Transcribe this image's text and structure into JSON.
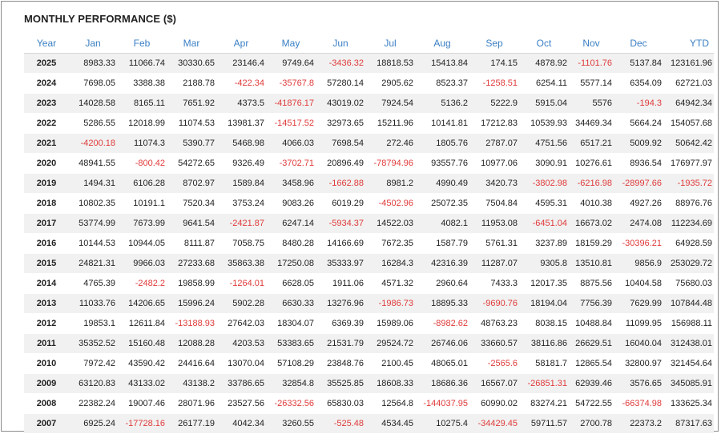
{
  "title": "MONTHLY PERFORMANCE ($)",
  "colors": {
    "header": "#3a7fc4",
    "negative": "#e03a3a",
    "stripe": "#f1f1f1"
  },
  "columns": [
    "Year",
    "Jan",
    "Feb",
    "Mar",
    "Apr",
    "May",
    "Jun",
    "Jul",
    "Aug",
    "Sep",
    "Oct",
    "Nov",
    "Dec",
    "YTD"
  ],
  "rows": [
    [
      "2025",
      "8983.33",
      "11066.74",
      "30330.65",
      "23146.4",
      "9749.64",
      "-3436.32",
      "18818.53",
      "15413.84",
      "174.15",
      "4878.92",
      "-1101.76",
      "5137.84",
      "123161.96"
    ],
    [
      "2024",
      "7698.05",
      "3388.38",
      "2188.78",
      "-422.34",
      "-35767.8",
      "57280.14",
      "2905.62",
      "8523.37",
      "-1258.51",
      "6254.11",
      "5577.14",
      "6354.09",
      "62721.03"
    ],
    [
      "2023",
      "14028.58",
      "8165.11",
      "7651.92",
      "4373.5",
      "-41876.17",
      "43019.02",
      "7924.54",
      "5136.2",
      "5222.9",
      "5915.04",
      "5576",
      "-194.3",
      "64942.34"
    ],
    [
      "2022",
      "5286.55",
      "12018.99",
      "11074.53",
      "13981.37",
      "-14517.52",
      "32973.65",
      "15211.96",
      "10141.81",
      "17212.83",
      "10539.93",
      "34469.34",
      "5664.24",
      "154057.68"
    ],
    [
      "2021",
      "-4200.18",
      "11074.3",
      "5390.77",
      "5468.98",
      "4066.03",
      "7698.54",
      "272.46",
      "1805.76",
      "2787.07",
      "4751.56",
      "6517.21",
      "5009.92",
      "50642.42"
    ],
    [
      "2020",
      "48941.55",
      "-800.42",
      "54272.65",
      "9326.49",
      "-3702.71",
      "20896.49",
      "-78794.96",
      "93557.76",
      "10977.06",
      "3090.91",
      "10276.61",
      "8936.54",
      "176977.97"
    ],
    [
      "2019",
      "1494.31",
      "6106.28",
      "8702.97",
      "1589.84",
      "3458.96",
      "-1662.88",
      "8981.2",
      "4990.49",
      "3420.73",
      "-3802.98",
      "-6216.98",
      "-28997.66",
      "-1935.72"
    ],
    [
      "2018",
      "10802.35",
      "10191.1",
      "7520.34",
      "3753.24",
      "9083.26",
      "6019.29",
      "-4502.96",
      "25072.35",
      "7504.84",
      "4595.31",
      "4010.38",
      "4927.26",
      "88976.76"
    ],
    [
      "2017",
      "53774.99",
      "7673.99",
      "9641.54",
      "-2421.87",
      "6247.14",
      "-5934.37",
      "14522.03",
      "4082.1",
      "11953.08",
      "-6451.04",
      "16673.02",
      "2474.08",
      "112234.69"
    ],
    [
      "2016",
      "10144.53",
      "10944.05",
      "8111.87",
      "7058.75",
      "8480.28",
      "14166.69",
      "7672.35",
      "1587.79",
      "5761.31",
      "3237.89",
      "18159.29",
      "-30396.21",
      "64928.59"
    ],
    [
      "2015",
      "24821.31",
      "9966.03",
      "27233.68",
      "35863.38",
      "17250.08",
      "35333.97",
      "16284.3",
      "42316.39",
      "11287.07",
      "9305.8",
      "13510.81",
      "9856.9",
      "253029.72"
    ],
    [
      "2014",
      "4765.39",
      "-2482.2",
      "19858.99",
      "-1264.01",
      "6628.05",
      "1911.06",
      "4571.32",
      "2960.64",
      "7433.3",
      "12017.35",
      "8875.56",
      "10404.58",
      "75680.03"
    ],
    [
      "2013",
      "11033.76",
      "14206.65",
      "15996.24",
      "5902.28",
      "6630.33",
      "13276.96",
      "-1986.73",
      "18895.33",
      "-9690.76",
      "18194.04",
      "7756.39",
      "7629.99",
      "107844.48"
    ],
    [
      "2012",
      "19853.1",
      "12611.84",
      "-13188.93",
      "27642.03",
      "18304.07",
      "6369.39",
      "15989.06",
      "-8982.62",
      "48763.23",
      "8038.15",
      "10488.84",
      "11099.95",
      "156988.11"
    ],
    [
      "2011",
      "35352.52",
      "15160.48",
      "12088.28",
      "4203.53",
      "53383.65",
      "21531.79",
      "29524.72",
      "26746.06",
      "33660.57",
      "38116.86",
      "26629.51",
      "16040.04",
      "312438.01"
    ],
    [
      "2010",
      "7972.42",
      "43590.42",
      "24416.64",
      "13070.04",
      "57108.29",
      "23848.76",
      "2100.45",
      "48065.01",
      "-2565.6",
      "58181.7",
      "12865.54",
      "32800.97",
      "321454.64"
    ],
    [
      "2009",
      "63120.83",
      "43133.02",
      "43138.2",
      "33786.65",
      "32854.8",
      "35525.85",
      "18608.33",
      "18686.36",
      "16567.07",
      "-26851.31",
      "62939.46",
      "3576.65",
      "345085.91"
    ],
    [
      "2008",
      "22382.24",
      "19007.46",
      "28071.96",
      "23527.56",
      "-26332.56",
      "65830.03",
      "12564.8",
      "-144037.95",
      "60990.02",
      "83274.21",
      "54722.55",
      "-66374.98",
      "133625.34"
    ],
    [
      "2007",
      "6925.24",
      "-17728.16",
      "26177.19",
      "4042.34",
      "3260.55",
      "-525.48",
      "4534.45",
      "10275.4",
      "-34429.45",
      "59711.57",
      "2700.78",
      "22373.2",
      "87317.63"
    ]
  ]
}
